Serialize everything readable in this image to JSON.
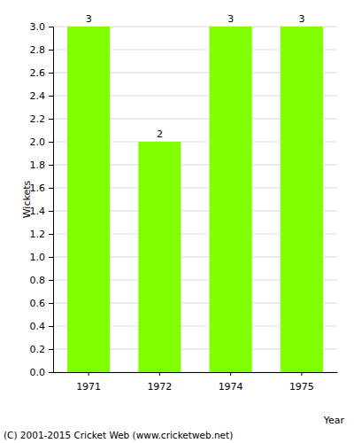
{
  "chart_data": {
    "type": "bar",
    "categories": [
      "1971",
      "1972",
      "1974",
      "1975"
    ],
    "values": [
      3,
      2,
      3,
      3
    ],
    "color": "#80ff00",
    "y_label": "Wickets",
    "x_label": "Year",
    "annotations": [
      "(C) 2001-2015 Cricket Web (www.cricketweb.net)"
    ],
    "ylim": [
      0,
      3
    ],
    "yticks": [
      {
        "value": 0,
        "label": "0.0"
      },
      {
        "value": 0.2,
        "label": "0.2"
      },
      {
        "value": 0.4,
        "label": "0.4"
      },
      {
        "value": 0.6,
        "label": "0.6"
      },
      {
        "value": 0.8,
        "label": "0.8"
      },
      {
        "value": 1,
        "label": "1.0"
      },
      {
        "value": 1.2,
        "label": "1.2"
      },
      {
        "value": 1.4,
        "label": "1.4"
      },
      {
        "value": 1.6,
        "label": "1.6"
      },
      {
        "value": 1.8,
        "label": "1.8"
      },
      {
        "value": 2,
        "label": "2.0"
      },
      {
        "value": 2.2,
        "label": "2.2"
      },
      {
        "value": 2.4,
        "label": "2.4"
      },
      {
        "value": 2.6,
        "label": "2.6"
      },
      {
        "value": 2.8,
        "label": "2.8"
      },
      {
        "value": 3,
        "label": "3.0"
      }
    ],
    "grid": true,
    "data_labels": true
  }
}
